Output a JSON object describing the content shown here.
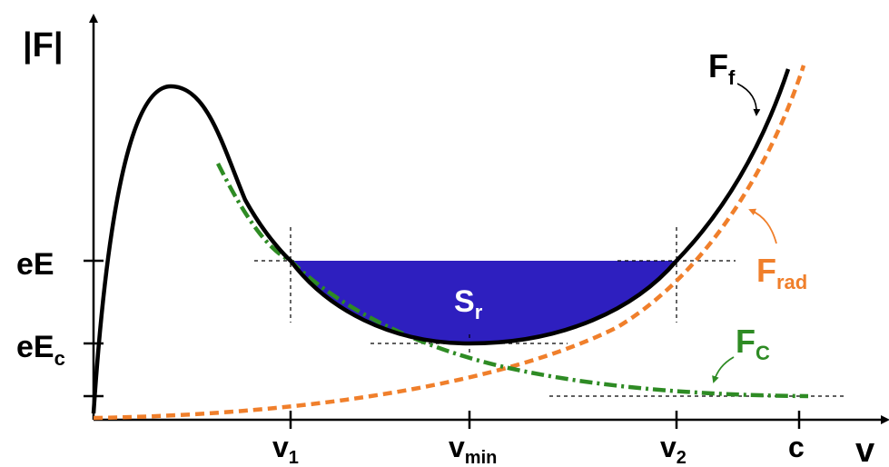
{
  "diagram": {
    "y_axis_label": "|F|",
    "x_axis_label": "v",
    "y_ticks": [
      {
        "main": "eE",
        "sub": ""
      },
      {
        "main": "eE",
        "sub": "c"
      }
    ],
    "x_ticks": [
      {
        "main": "v",
        "sub": "1"
      },
      {
        "main": "v",
        "sub": "min"
      },
      {
        "main": "v",
        "sub": "2"
      },
      {
        "main": "c",
        "sub": ""
      }
    ],
    "curves": [
      {
        "main": "F",
        "sub": "f",
        "color": "#000000",
        "style": "solid"
      },
      {
        "main": "F",
        "sub": "rad",
        "color": "#f07f2b",
        "style": "dashed"
      },
      {
        "main": "F",
        "sub": "C",
        "color": "#2e8b24",
        "style": "dash-dot"
      }
    ],
    "region": {
      "main": "S",
      "sub": "r",
      "fill": "#2e1fbf",
      "text_color": "#ffffff"
    }
  }
}
